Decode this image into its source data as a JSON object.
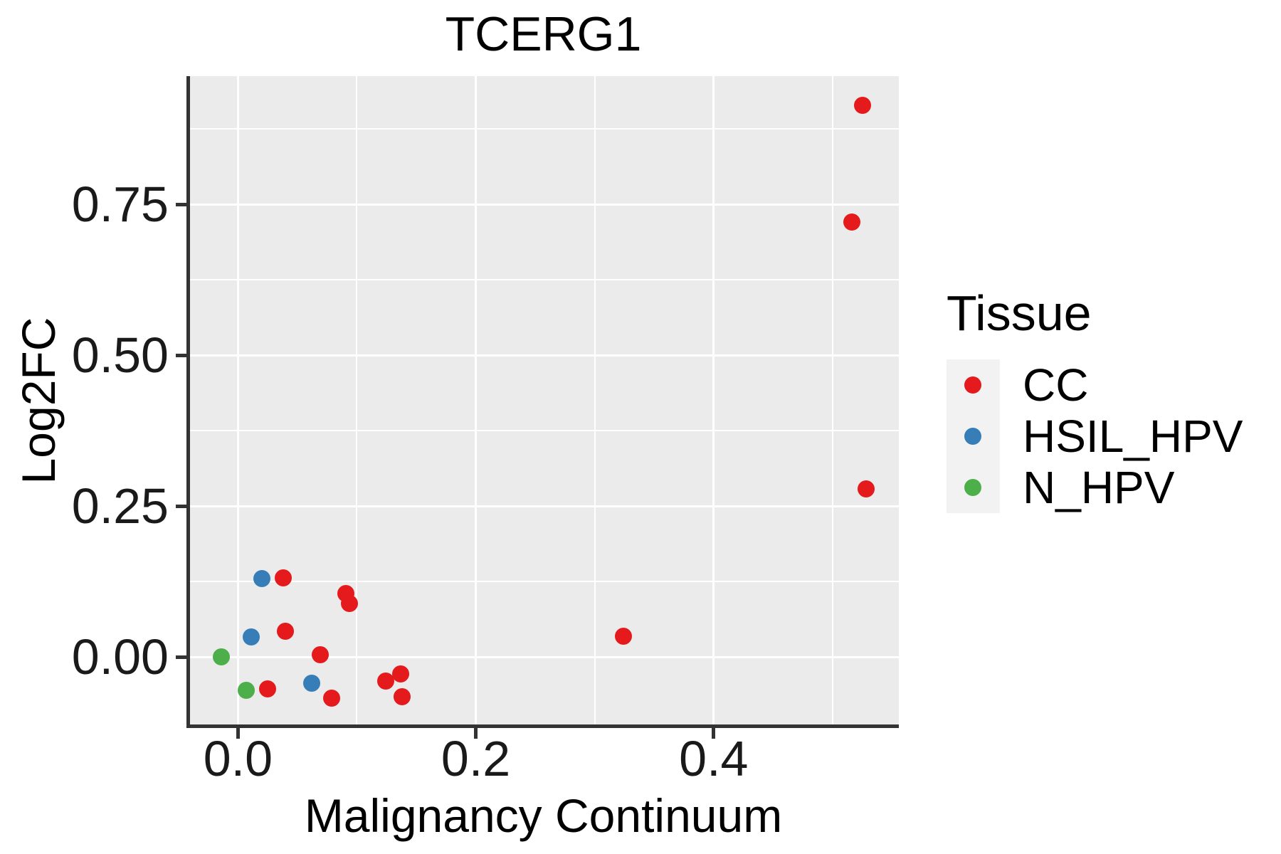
{
  "title": "TCERG1",
  "axes": {
    "x": {
      "label": "Malignancy Continuum",
      "range": [
        -0.0421,
        0.5557
      ],
      "ticks": [
        {
          "value": 0.0,
          "label": "0.0"
        },
        {
          "value": 0.2,
          "label": "0.2"
        },
        {
          "value": 0.4,
          "label": "0.4"
        }
      ],
      "minor_ticks": [
        0.1,
        0.3,
        0.5
      ]
    },
    "y": {
      "label": "Log2FC",
      "range": [
        -0.1138,
        0.9628
      ],
      "ticks": [
        {
          "value": 0.0,
          "label": "0.00"
        },
        {
          "value": 0.25,
          "label": "0.25"
        },
        {
          "value": 0.5,
          "label": "0.50"
        },
        {
          "value": 0.75,
          "label": "0.75"
        }
      ],
      "minor_ticks": [
        0.125,
        0.375,
        0.625,
        0.875
      ]
    }
  },
  "legend": {
    "title": "Tissue",
    "items": [
      {
        "label": "CC",
        "color": "#E41A1C"
      },
      {
        "label": "HSIL_HPV",
        "color": "#377EB8"
      },
      {
        "label": "N_HPV",
        "color": "#4DAF4A"
      }
    ]
  },
  "chart_data": {
    "type": "scatter",
    "title": "TCERG1",
    "xlabel": "Malignancy Continuum",
    "ylabel": "Log2FC",
    "xlim": [
      -0.0421,
      0.5557
    ],
    "ylim": [
      -0.1138,
      0.9628
    ],
    "grid": "major-and-minor-white-on-gray",
    "legend_position": "right",
    "series": [
      {
        "name": "CC",
        "color": "#E41A1C",
        "points": [
          [
            0.525,
            0.914
          ],
          [
            0.516,
            0.721
          ],
          [
            0.528,
            0.279
          ],
          [
            0.324,
            0.035
          ],
          [
            0.038,
            0.132
          ],
          [
            0.091,
            0.106
          ],
          [
            0.094,
            0.089
          ],
          [
            0.04,
            0.043
          ],
          [
            0.069,
            0.004
          ],
          [
            0.025,
            -0.052
          ],
          [
            0.079,
            -0.068
          ],
          [
            0.124,
            -0.04
          ],
          [
            0.137,
            -0.028
          ],
          [
            0.138,
            -0.065
          ]
        ]
      },
      {
        "name": "HSIL_HPV",
        "color": "#377EB8",
        "points": [
          [
            0.02,
            0.13
          ],
          [
            0.011,
            0.034
          ],
          [
            0.062,
            -0.043
          ]
        ]
      },
      {
        "name": "N_HPV",
        "color": "#4DAF4A",
        "points": [
          [
            -0.014,
            0.001
          ],
          [
            0.007,
            -0.055
          ]
        ]
      }
    ]
  },
  "colors": {
    "panel_background": "#EBEBEB",
    "gridline": "#FFFFFF",
    "axis_line": "#333333",
    "tick_text": "#1A1A1A",
    "legend_key_background": "#F2F2F2"
  }
}
